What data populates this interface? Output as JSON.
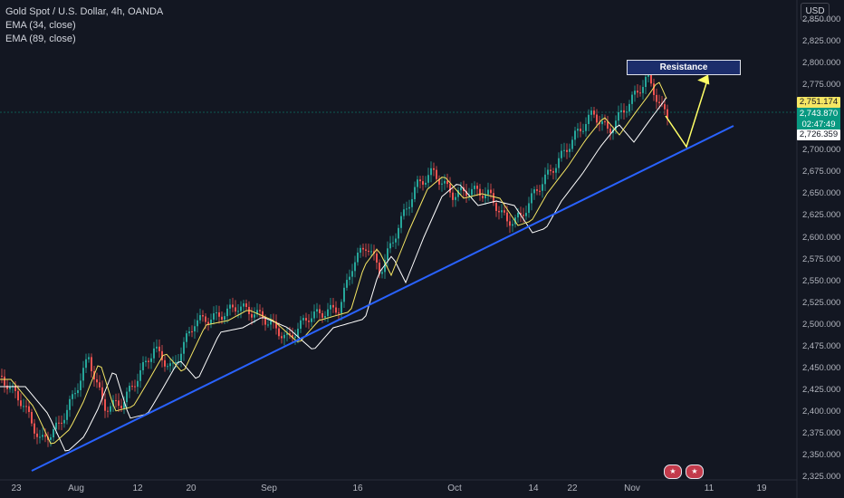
{
  "legend": {
    "symbol_title": "Gold Spot / U.S. Dollar, 4h, OANDA",
    "ema34_label": "EMA (34, close)",
    "ema89_label": "EMA (89, close)"
  },
  "currency_button": "USD",
  "y_axis_ticks": [
    "2,850.000",
    "2,825.000",
    "2,800.000",
    "2,775.000",
    "2,750.000",
    "2,725.000",
    "2,700.000",
    "2,675.000",
    "2,650.000",
    "2,625.000",
    "2,600.000",
    "2,575.000",
    "2,550.000",
    "2,525.000",
    "2,500.000",
    "2,475.000",
    "2,450.000",
    "2,425.000",
    "2,400.000",
    "2,375.000",
    "2,350.000",
    "2,325.000"
  ],
  "x_axis_ticks": [
    "23",
    "Aug",
    "12",
    "20",
    "Sep",
    "16",
    "Oct",
    "14",
    "22",
    "Nov",
    "11",
    "19"
  ],
  "price_tags": {
    "ema34_value": "2,751.174",
    "last_price": "2,743.870",
    "countdown": "02:47:49",
    "ema89_value": "2,726.359"
  },
  "annotation": {
    "resistance_label": "Resistance"
  },
  "colors": {
    "background": "#131722",
    "up_candle": "#26a69a",
    "down_candle": "#ef5350",
    "ema34": "#f5e663",
    "ema89": "#ffffff",
    "trendline": "#2962ff",
    "projection": "#ffff66"
  },
  "event_icons": [
    "us-flag-icon",
    "us-flag-icon"
  ]
}
